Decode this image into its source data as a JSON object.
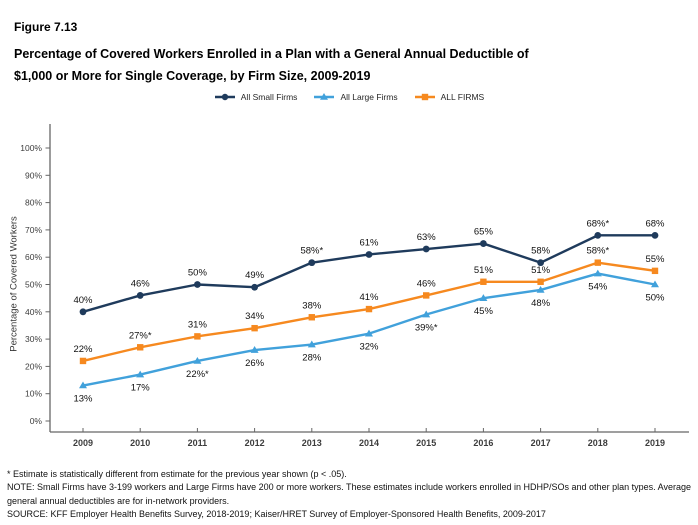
{
  "header": {
    "figure_label": "Figure 7.13",
    "title_line1": "Percentage of Covered Workers Enrolled in a Plan with a General Annual Deductible of",
    "title_line2": "$1,000 or More for Single Coverage, by Firm Size, 2009-2019"
  },
  "chart_data": {
    "type": "line",
    "x": [
      "2009",
      "2010",
      "2011",
      "2012",
      "2013",
      "2014",
      "2015",
      "2016",
      "2017",
      "2018",
      "2019"
    ],
    "ylabel": "Percentage of Covered Workers",
    "ylim": [
      0,
      100
    ],
    "yticks": [
      "0%",
      "10%",
      "20%",
      "30%",
      "40%",
      "50%",
      "60%",
      "70%",
      "80%",
      "90%",
      "100%"
    ],
    "grid": false,
    "legend_position": "top",
    "axis_color": "#666666",
    "tick_label_color": "#3d3d3d",
    "data_label_color": "#111111",
    "series": [
      {
        "name": "All Small Firms",
        "color": "#1F3B5C",
        "marker": "circle",
        "label_position": "above",
        "values": [
          40,
          46,
          50,
          49,
          58,
          61,
          63,
          65,
          58,
          68,
          68
        ],
        "labels": [
          "40%",
          "46%",
          "50%",
          "49%",
          "58%*",
          "61%",
          "63%",
          "65%",
          "58%",
          "68%*",
          "68%"
        ]
      },
      {
        "name": "All Large Firms",
        "color": "#41A1DB",
        "marker": "triangle",
        "label_position": "below",
        "values": [
          13,
          17,
          22,
          26,
          28,
          32,
          39,
          45,
          48,
          54,
          50
        ],
        "labels": [
          "13%",
          "17%",
          "22%*",
          "26%",
          "28%",
          "32%",
          "39%*",
          "45%",
          "48%",
          "54%",
          "50%"
        ]
      },
      {
        "name": "ALL FIRMS",
        "color": "#F6891F",
        "marker": "square",
        "label_position": "above",
        "values": [
          22,
          27,
          31,
          34,
          38,
          41,
          46,
          51,
          51,
          58,
          55
        ],
        "labels": [
          "22%",
          "27%*",
          "31%",
          "34%",
          "38%",
          "41%",
          "46%",
          "51%",
          "51%",
          "58%*",
          "55%"
        ]
      }
    ]
  },
  "footnotes": {
    "star_note": "* Estimate is statistically different from estimate for the previous year shown (p < .05).",
    "note": "NOTE: Small Firms have 3-199 workers and Large Firms have 200 or more workers. These estimates include workers enrolled in HDHP/SOs and other plan types. Average general annual deductibles are for in-network providers.",
    "source": "SOURCE: KFF Employer Health Benefits Survey, 2018-2019; Kaiser/HRET Survey of Employer-Sponsored Health Benefits, 2009-2017"
  }
}
